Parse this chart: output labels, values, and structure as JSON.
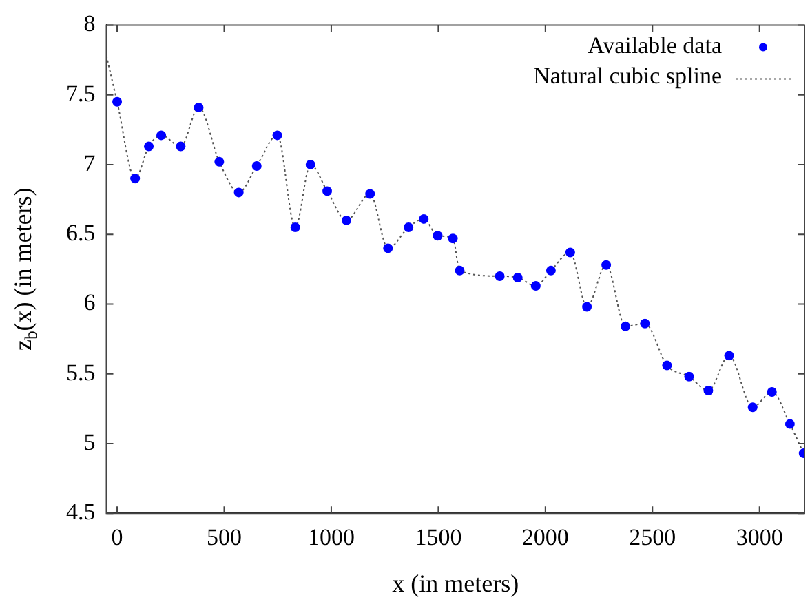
{
  "chart_data": {
    "type": "scatter",
    "xlabel": "x (in meters)",
    "ylabel": "z$_{b}$(x) (in meters)",
    "xlim": [
      -50,
      3210
    ],
    "xticks": [
      0,
      500,
      1000,
      1500,
      2000,
      2500,
      3000
    ],
    "ylim": [
      4.5,
      8
    ],
    "yticks": [
      4.5,
      5,
      5.5,
      6,
      6.5,
      7,
      7.5,
      8
    ],
    "grid": false,
    "legend": "top right",
    "series": [
      {
        "name": "Available data",
        "color": "#0000ff",
        "marker": "circle",
        "x": [
          0,
          84,
          148,
          206,
          297,
          381,
          477,
          568,
          652,
          748,
          832,
          903,
          981,
          1071,
          1181,
          1265,
          1361,
          1432,
          1497,
          1568,
          1600,
          1787,
          1871,
          1955,
          2026,
          2116,
          2194,
          2284,
          2374,
          2465,
          2568,
          2671,
          2761,
          2858,
          2968,
          3058,
          3142,
          3206
        ],
        "values": [
          7.45,
          6.9,
          7.13,
          7.21,
          7.13,
          7.41,
          7.02,
          6.8,
          6.99,
          7.21,
          6.55,
          7.0,
          6.81,
          6.6,
          6.79,
          6.4,
          6.55,
          6.61,
          6.49,
          6.47,
          6.24,
          6.2,
          6.19,
          6.13,
          6.24,
          6.37,
          5.98,
          6.28,
          5.84,
          5.86,
          5.56,
          5.48,
          5.38,
          5.63,
          5.26,
          5.37,
          5.14,
          4.93
        ]
      },
      {
        "name": "Natural cubic spline",
        "type": "line",
        "color": "#555555",
        "line_style": "dotted",
        "marker": "none",
        "x": [
          -50,
          0,
          84,
          148,
          206,
          297,
          381,
          477,
          568,
          652,
          748,
          832,
          903,
          981,
          1071,
          1181,
          1265,
          1361,
          1432,
          1497,
          1568,
          1600,
          1787,
          1871,
          1955,
          2026,
          2116,
          2194,
          2284,
          2374,
          2465,
          2568,
          2671,
          2761,
          2858,
          2968,
          3058,
          3142,
          3206
        ],
        "values": [
          7.78,
          7.45,
          6.9,
          7.13,
          7.21,
          7.13,
          7.41,
          7.02,
          6.8,
          6.99,
          7.21,
          6.55,
          7.0,
          6.81,
          6.6,
          6.79,
          6.4,
          6.55,
          6.61,
          6.49,
          6.47,
          6.24,
          6.2,
          6.19,
          6.13,
          6.24,
          6.37,
          5.98,
          6.28,
          5.84,
          5.86,
          5.56,
          5.48,
          5.38,
          5.63,
          5.26,
          5.37,
          5.14,
          4.93
        ]
      }
    ]
  }
}
